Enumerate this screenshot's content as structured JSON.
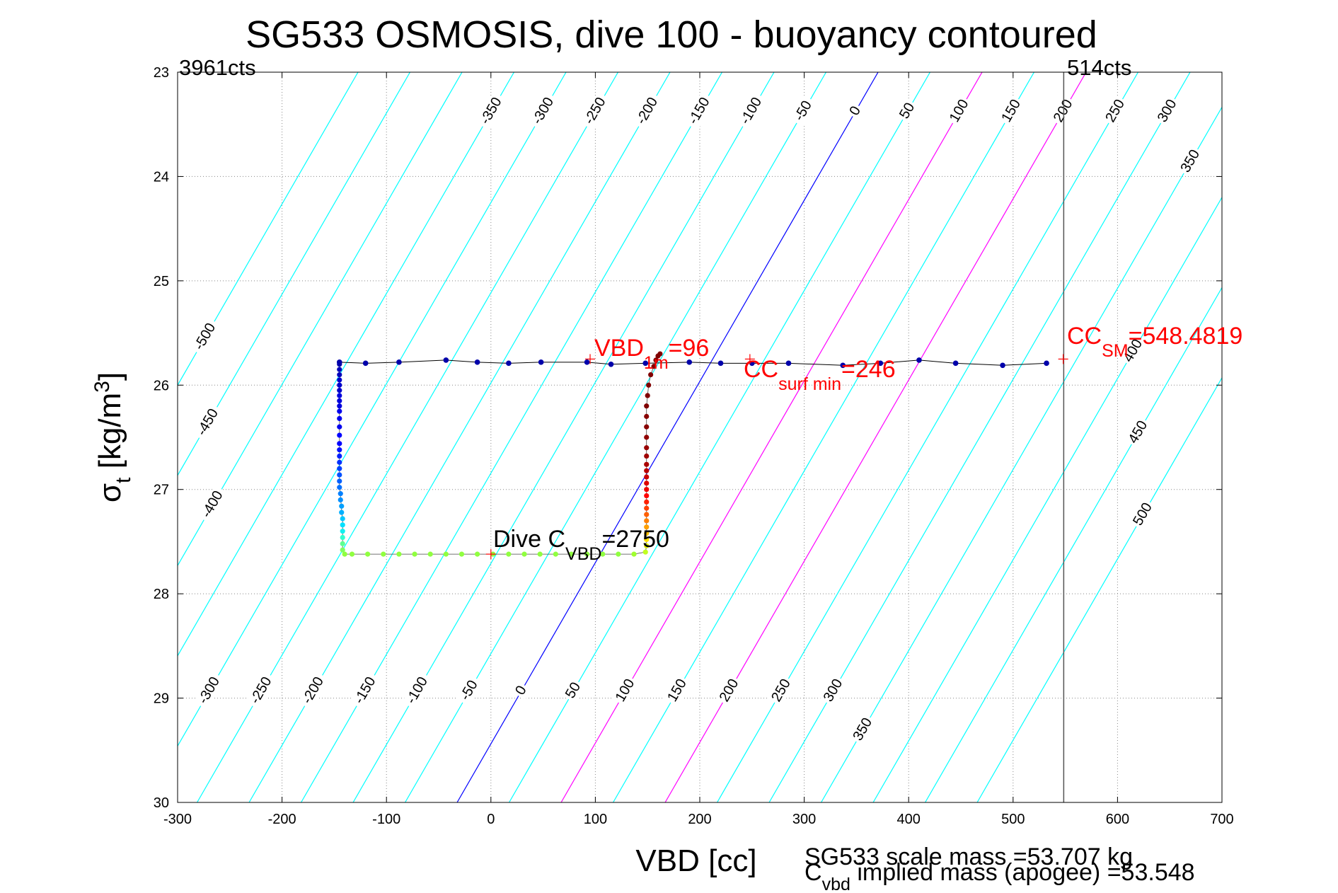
{
  "chart_data": {
    "type": "scatter",
    "title": "SG533 OSMOSIS, dive 100 - buoyancy contoured",
    "xlabel": "VBD [cc]",
    "ylabel": {
      "main": "σ",
      "sub": "t",
      "rest": " [kg/m",
      "sup": "3",
      "close": "]"
    },
    "xlim": [
      -300,
      700
    ],
    "ylim": [
      23,
      30
    ],
    "y_reversed": true,
    "grid": true,
    "xticks": [
      -300,
      -200,
      -100,
      0,
      100,
      200,
      300,
      400,
      500,
      600,
      700
    ],
    "yticks": [
      23,
      24,
      25,
      26,
      27,
      28,
      29,
      30
    ],
    "corner_labels": {
      "left": "3961cts",
      "right": "514cts"
    },
    "buoyancy_contours": {
      "levels": [
        -500,
        -450,
        -400,
        -350,
        -300,
        -250,
        -200,
        -150,
        -100,
        -50,
        0,
        50,
        100,
        150,
        200,
        250,
        300,
        350,
        400,
        450,
        500
      ],
      "color": "#00ffff",
      "zero_color": "#0000ff",
      "highlight_levels": [
        100,
        200
      ],
      "highlight_color": "#ff00ff",
      "top_labels": [
        -350,
        -300,
        -250,
        -200,
        -150,
        -100,
        -50,
        0,
        50,
        100,
        150,
        200,
        250,
        300,
        350
      ],
      "bottom_labels": [
        -300,
        -250,
        -200,
        -150,
        -100,
        -50,
        0,
        50,
        100,
        150,
        200,
        250,
        300,
        350
      ],
      "left_labels": [
        -500,
        -450,
        -400
      ],
      "right_labels": [
        400,
        450,
        500
      ]
    },
    "vertical_line": {
      "x": 548.4819,
      "color": "#555555"
    },
    "dive_profile": [
      {
        "x": -145,
        "y": 25.8,
        "c": "#0000aa"
      },
      {
        "x": -145,
        "y": 25.85,
        "c": "#0000bb"
      },
      {
        "x": -145,
        "y": 25.9,
        "c": "#0000bb"
      },
      {
        "x": -145,
        "y": 25.95,
        "c": "#0000cc"
      },
      {
        "x": -145,
        "y": 26.0,
        "c": "#0000cc"
      },
      {
        "x": -145,
        "y": 26.05,
        "c": "#0000cc"
      },
      {
        "x": -145,
        "y": 26.1,
        "c": "#0000dd"
      },
      {
        "x": -145,
        "y": 26.15,
        "c": "#0000dd"
      },
      {
        "x": -145,
        "y": 26.2,
        "c": "#0000dd"
      },
      {
        "x": -145,
        "y": 26.25,
        "c": "#0000ee"
      },
      {
        "x": -145,
        "y": 26.32,
        "c": "#0000ee"
      },
      {
        "x": -145,
        "y": 26.4,
        "c": "#0000ee"
      },
      {
        "x": -145,
        "y": 26.48,
        "c": "#0000ff"
      },
      {
        "x": -145,
        "y": 26.56,
        "c": "#0000ff"
      },
      {
        "x": -145,
        "y": 26.62,
        "c": "#0010ff"
      },
      {
        "x": -145,
        "y": 26.68,
        "c": "#0020ff"
      },
      {
        "x": -145,
        "y": 26.74,
        "c": "#0030ff"
      },
      {
        "x": -145,
        "y": 26.8,
        "c": "#0040ff"
      },
      {
        "x": -145,
        "y": 26.86,
        "c": "#0050ff"
      },
      {
        "x": -145,
        "y": 26.92,
        "c": "#0060ff"
      },
      {
        "x": -145,
        "y": 26.98,
        "c": "#0070ff"
      },
      {
        "x": -144,
        "y": 27.04,
        "c": "#0080ff"
      },
      {
        "x": -144,
        "y": 27.1,
        "c": "#0090ff"
      },
      {
        "x": -143,
        "y": 27.16,
        "c": "#00a0ff"
      },
      {
        "x": -143,
        "y": 27.22,
        "c": "#00b0ff"
      },
      {
        "x": -142,
        "y": 27.28,
        "c": "#00c8ff"
      },
      {
        "x": -142,
        "y": 27.34,
        "c": "#00e0ff"
      },
      {
        "x": -142,
        "y": 27.4,
        "c": "#10f0f0"
      },
      {
        "x": -142,
        "y": 27.46,
        "c": "#30ffd0"
      },
      {
        "x": -142,
        "y": 27.52,
        "c": "#60ff90"
      },
      {
        "x": -142,
        "y": 27.58,
        "c": "#80ff60"
      },
      {
        "x": -140,
        "y": 27.62,
        "c": "#90ff40"
      },
      {
        "x": -133,
        "y": 27.62,
        "c": "#90ff40"
      },
      {
        "x": -118,
        "y": 27.62,
        "c": "#90ff40"
      },
      {
        "x": -103,
        "y": 27.62,
        "c": "#90ff40"
      },
      {
        "x": -88,
        "y": 27.62,
        "c": "#90ff40"
      },
      {
        "x": -73,
        "y": 27.62,
        "c": "#90ff40"
      },
      {
        "x": -58,
        "y": 27.62,
        "c": "#90ff40"
      },
      {
        "x": -43,
        "y": 27.62,
        "c": "#90ff40"
      },
      {
        "x": -28,
        "y": 27.62,
        "c": "#90ff40"
      },
      {
        "x": -13,
        "y": 27.62,
        "c": "#90ff40"
      },
      {
        "x": 2,
        "y": 27.62,
        "c": "#90ff40"
      },
      {
        "x": 17,
        "y": 27.62,
        "c": "#90ff40"
      },
      {
        "x": 32,
        "y": 27.62,
        "c": "#90ff40"
      },
      {
        "x": 47,
        "y": 27.62,
        "c": "#90ff40"
      },
      {
        "x": 62,
        "y": 27.62,
        "c": "#90ff40"
      },
      {
        "x": 77,
        "y": 27.62,
        "c": "#90ff40"
      },
      {
        "x": 92,
        "y": 27.62,
        "c": "#90ff40"
      },
      {
        "x": 107,
        "y": 27.62,
        "c": "#90ff40"
      },
      {
        "x": 122,
        "y": 27.62,
        "c": "#90ff40"
      },
      {
        "x": 137,
        "y": 27.62,
        "c": "#a0ff30"
      },
      {
        "x": 148,
        "y": 27.6,
        "c": "#c0ff20"
      },
      {
        "x": 149,
        "y": 27.54,
        "c": "#e0f000"
      },
      {
        "x": 149,
        "y": 27.48,
        "c": "#ffe000"
      },
      {
        "x": 149,
        "y": 27.42,
        "c": "#ffc000"
      },
      {
        "x": 149,
        "y": 27.36,
        "c": "#ffa000"
      },
      {
        "x": 149,
        "y": 27.3,
        "c": "#ff8000"
      },
      {
        "x": 149,
        "y": 27.24,
        "c": "#ff6000"
      },
      {
        "x": 149,
        "y": 27.18,
        "c": "#ff4000"
      },
      {
        "x": 149,
        "y": 27.12,
        "c": "#ff2000"
      },
      {
        "x": 149,
        "y": 27.06,
        "c": "#ff0000"
      },
      {
        "x": 149,
        "y": 27.0,
        "c": "#ee0000"
      },
      {
        "x": 149,
        "y": 26.94,
        "c": "#dd0000"
      },
      {
        "x": 149,
        "y": 26.88,
        "c": "#cc0000"
      },
      {
        "x": 149,
        "y": 26.82,
        "c": "#bb0000"
      },
      {
        "x": 149,
        "y": 26.76,
        "c": "#aa0000"
      },
      {
        "x": 149,
        "y": 26.68,
        "c": "#a00000"
      },
      {
        "x": 149,
        "y": 26.6,
        "c": "#990000"
      },
      {
        "x": 149,
        "y": 26.5,
        "c": "#900000"
      },
      {
        "x": 149,
        "y": 26.4,
        "c": "#880000"
      },
      {
        "x": 149,
        "y": 26.3,
        "c": "#880000"
      },
      {
        "x": 149,
        "y": 26.2,
        "c": "#800000"
      },
      {
        "x": 150,
        "y": 26.1,
        "c": "#800000"
      },
      {
        "x": 151,
        "y": 26.0,
        "c": "#800000"
      },
      {
        "x": 153,
        "y": 25.9,
        "c": "#800000"
      },
      {
        "x": 156,
        "y": 25.82,
        "c": "#800000"
      },
      {
        "x": 158,
        "y": 25.76,
        "c": "#800000"
      },
      {
        "x": 160,
        "y": 25.72,
        "c": "#800000"
      },
      {
        "x": 162,
        "y": 25.7,
        "c": "#800000"
      }
    ],
    "surface_points": [
      {
        "x": -145,
        "y": 25.78
      },
      {
        "x": -120,
        "y": 25.79
      },
      {
        "x": -88,
        "y": 25.78
      },
      {
        "x": -43,
        "y": 25.76
      },
      {
        "x": -13,
        "y": 25.78
      },
      {
        "x": 17,
        "y": 25.79
      },
      {
        "x": 48,
        "y": 25.78
      },
      {
        "x": 92,
        "y": 25.78
      },
      {
        "x": 115,
        "y": 25.8
      },
      {
        "x": 148,
        "y": 25.79
      },
      {
        "x": 190,
        "y": 25.78
      },
      {
        "x": 220,
        "y": 25.79
      },
      {
        "x": 250,
        "y": 25.79
      },
      {
        "x": 285,
        "y": 25.79
      },
      {
        "x": 337,
        "y": 25.81
      },
      {
        "x": 373,
        "y": 25.79
      },
      {
        "x": 410,
        "y": 25.76
      },
      {
        "x": 445,
        "y": 25.79
      },
      {
        "x": 490,
        "y": 25.81
      },
      {
        "x": 532,
        "y": 25.79
      }
    ],
    "line_color": "#000000",
    "surface_point_color": "#0000aa",
    "marker_color": "#ff0000",
    "markers": [
      {
        "x": 95,
        "y": 25.75
      },
      {
        "x": 248,
        "y": 25.75
      },
      {
        "x": 548,
        "y": 25.75
      },
      {
        "x": 0,
        "y": 27.62
      }
    ],
    "annotations": {
      "vbd1m": {
        "main": "VBD",
        "sub": "1m",
        "rest": "=96"
      },
      "cc_surf_min": {
        "main": "CC",
        "sub": "surf min",
        "rest": "=246"
      },
      "cc_sm": {
        "main": "CC",
        "sub": "SM",
        "rest": "=548.4819"
      },
      "dive_c_vbd": {
        "main": "Dive C",
        "sub": "VBD",
        "rest": "=2750"
      }
    },
    "footer": {
      "scale_mass": "SG533 scale mass =53.707 kg",
      "implied_mass": {
        "main": "C",
        "sub": "vbd",
        "rest": " implied mass (apogee) =53.548"
      }
    }
  }
}
